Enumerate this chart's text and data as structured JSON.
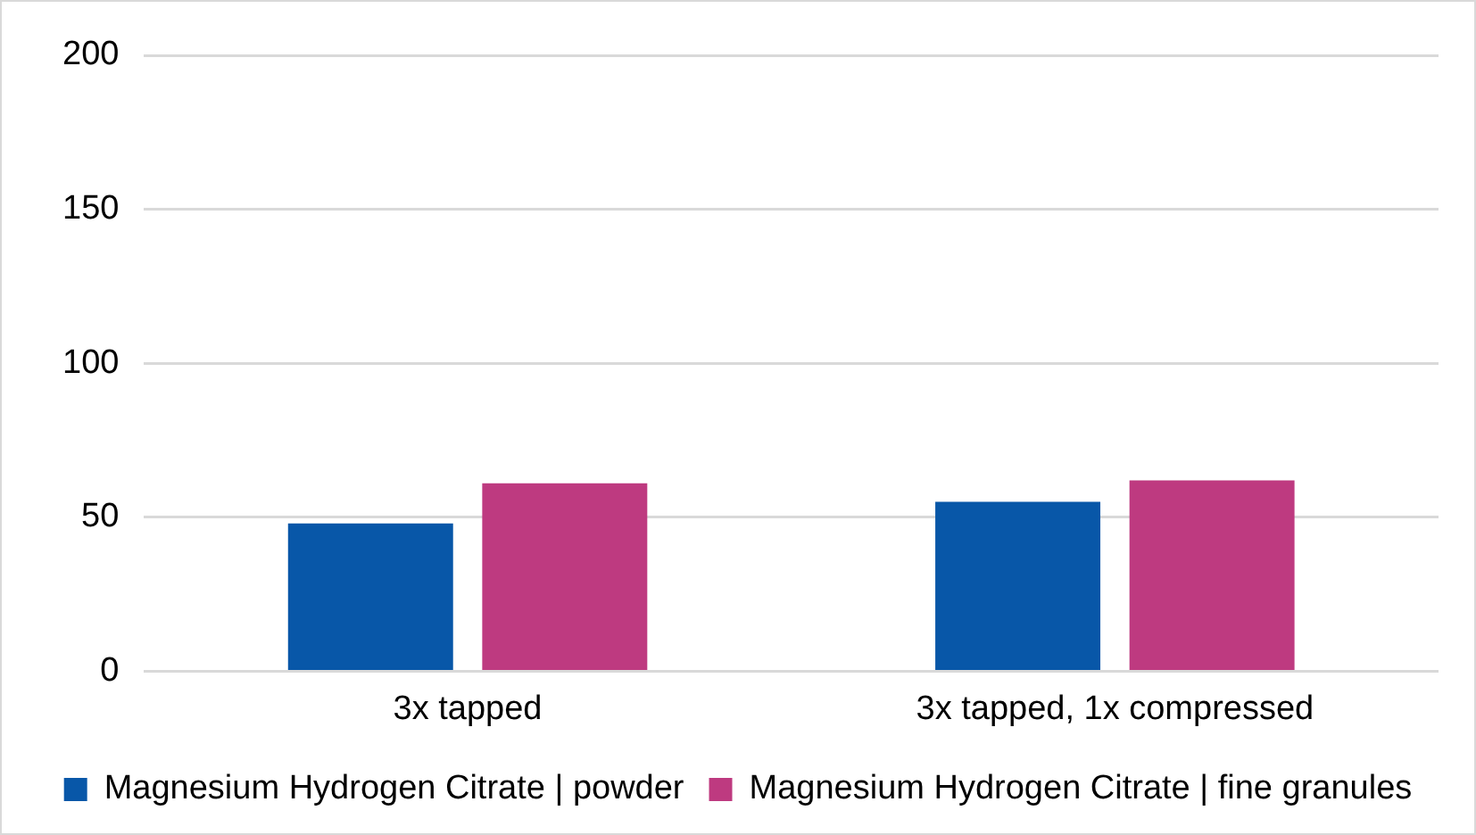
{
  "chart_data": {
    "type": "bar",
    "categories": [
      "3x tapped",
      "3x tapped, 1x compressed"
    ],
    "series": [
      {
        "name": "Magnesium Hydrogen Citrate | powder",
        "color": "#0857a8",
        "values": [
          48,
          55
        ]
      },
      {
        "name": "Magnesium Hydrogen Citrate | fine granules",
        "color": "#be3a80",
        "values": [
          61,
          62
        ]
      }
    ],
    "ylim": [
      0,
      200
    ],
    "yticks": [
      0,
      50,
      100,
      150,
      200
    ],
    "grid": "y",
    "legend": "bottom"
  }
}
